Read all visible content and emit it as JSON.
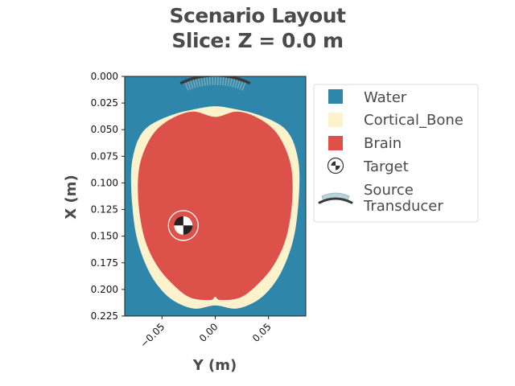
{
  "chart_data": {
    "type": "heatmap",
    "title_line1": "Scenario Layout",
    "title_line2": "Slice: Z = 0.0 m",
    "xlabel": "Y (m)",
    "ylabel": "X (m)",
    "xlim": [
      -0.085,
      0.085
    ],
    "ylim": [
      0.225,
      0.0
    ],
    "x_ticks": [
      {
        "value": -0.05,
        "label": "−0.05"
      },
      {
        "value": 0.0,
        "label": "0.00"
      },
      {
        "value": 0.05,
        "label": "0.05"
      }
    ],
    "y_ticks": [
      {
        "value": 0.0,
        "label": "0.000"
      },
      {
        "value": 0.025,
        "label": "0.025"
      },
      {
        "value": 0.05,
        "label": "0.050"
      },
      {
        "value": 0.075,
        "label": "0.075"
      },
      {
        "value": 0.1,
        "label": "0.100"
      },
      {
        "value": 0.125,
        "label": "0.125"
      },
      {
        "value": 0.15,
        "label": "0.150"
      },
      {
        "value": 0.175,
        "label": "0.175"
      },
      {
        "value": 0.2,
        "label": "0.200"
      },
      {
        "value": 0.225,
        "label": "0.225"
      }
    ],
    "materials": [
      {
        "name": "Water",
        "color": "#2e86ab"
      },
      {
        "name": "Cortical_Bone",
        "color": "#fcf3cd"
      },
      {
        "name": "Brain",
        "color": "#dc524b"
      }
    ],
    "skull_outer_boundary": [
      [
        0.0,
        0.028
      ],
      [
        0.02,
        0.031
      ],
      [
        0.04,
        0.036
      ],
      [
        0.06,
        0.045
      ],
      [
        0.07,
        0.055
      ],
      [
        0.076,
        0.07
      ],
      [
        0.079,
        0.09
      ],
      [
        0.078,
        0.12
      ],
      [
        0.074,
        0.15
      ],
      [
        0.066,
        0.175
      ],
      [
        0.055,
        0.195
      ],
      [
        0.04,
        0.21
      ],
      [
        0.02,
        0.218
      ],
      [
        0.0,
        0.215
      ],
      [
        -0.02,
        0.218
      ],
      [
        -0.04,
        0.21
      ],
      [
        -0.055,
        0.195
      ],
      [
        -0.066,
        0.175
      ],
      [
        -0.074,
        0.15
      ],
      [
        -0.078,
        0.12
      ],
      [
        -0.079,
        0.09
      ],
      [
        -0.076,
        0.07
      ],
      [
        -0.07,
        0.055
      ],
      [
        -0.06,
        0.045
      ],
      [
        -0.04,
        0.036
      ],
      [
        -0.02,
        0.031
      ]
    ],
    "brain_boundary": [
      [
        0.0,
        0.038
      ],
      [
        0.02,
        0.033
      ],
      [
        0.038,
        0.038
      ],
      [
        0.055,
        0.05
      ],
      [
        0.066,
        0.068
      ],
      [
        0.072,
        0.09
      ],
      [
        0.072,
        0.12
      ],
      [
        0.067,
        0.15
      ],
      [
        0.058,
        0.172
      ],
      [
        0.045,
        0.19
      ],
      [
        0.025,
        0.207
      ],
      [
        0.005,
        0.21
      ],
      [
        0.0,
        0.207
      ],
      [
        -0.005,
        0.21
      ],
      [
        -0.025,
        0.207
      ],
      [
        -0.045,
        0.19
      ],
      [
        -0.058,
        0.172
      ],
      [
        -0.067,
        0.15
      ],
      [
        -0.072,
        0.12
      ],
      [
        -0.072,
        0.09
      ],
      [
        -0.066,
        0.068
      ],
      [
        -0.055,
        0.05
      ],
      [
        -0.038,
        0.038
      ],
      [
        -0.02,
        0.033
      ]
    ],
    "target": {
      "name": "Target",
      "y": -0.03,
      "x": 0.14,
      "radius_m": 0.014
    },
    "transducer": {
      "name": "Source Transducer",
      "center_y": 0.0,
      "center_x": 0.074,
      "radius_m": 0.075,
      "half_angle_deg": 25,
      "color": "#3a3a3a",
      "beam_color": "#8fb4be"
    },
    "legend": {
      "placement": "upper-right-outside",
      "entries": [
        {
          "key": "water",
          "label": "Water",
          "kind": "square",
          "color": "#2e86ab"
        },
        {
          "key": "bone",
          "label": "Cortical_Bone",
          "kind": "square",
          "color": "#fcf3cd"
        },
        {
          "key": "brain",
          "label": "Brain",
          "kind": "square",
          "color": "#dc524b"
        },
        {
          "key": "target",
          "label": "Target",
          "kind": "target"
        },
        {
          "key": "source",
          "label_line1": "Source",
          "label_line2": "Transducer",
          "kind": "transducer"
        }
      ]
    }
  }
}
